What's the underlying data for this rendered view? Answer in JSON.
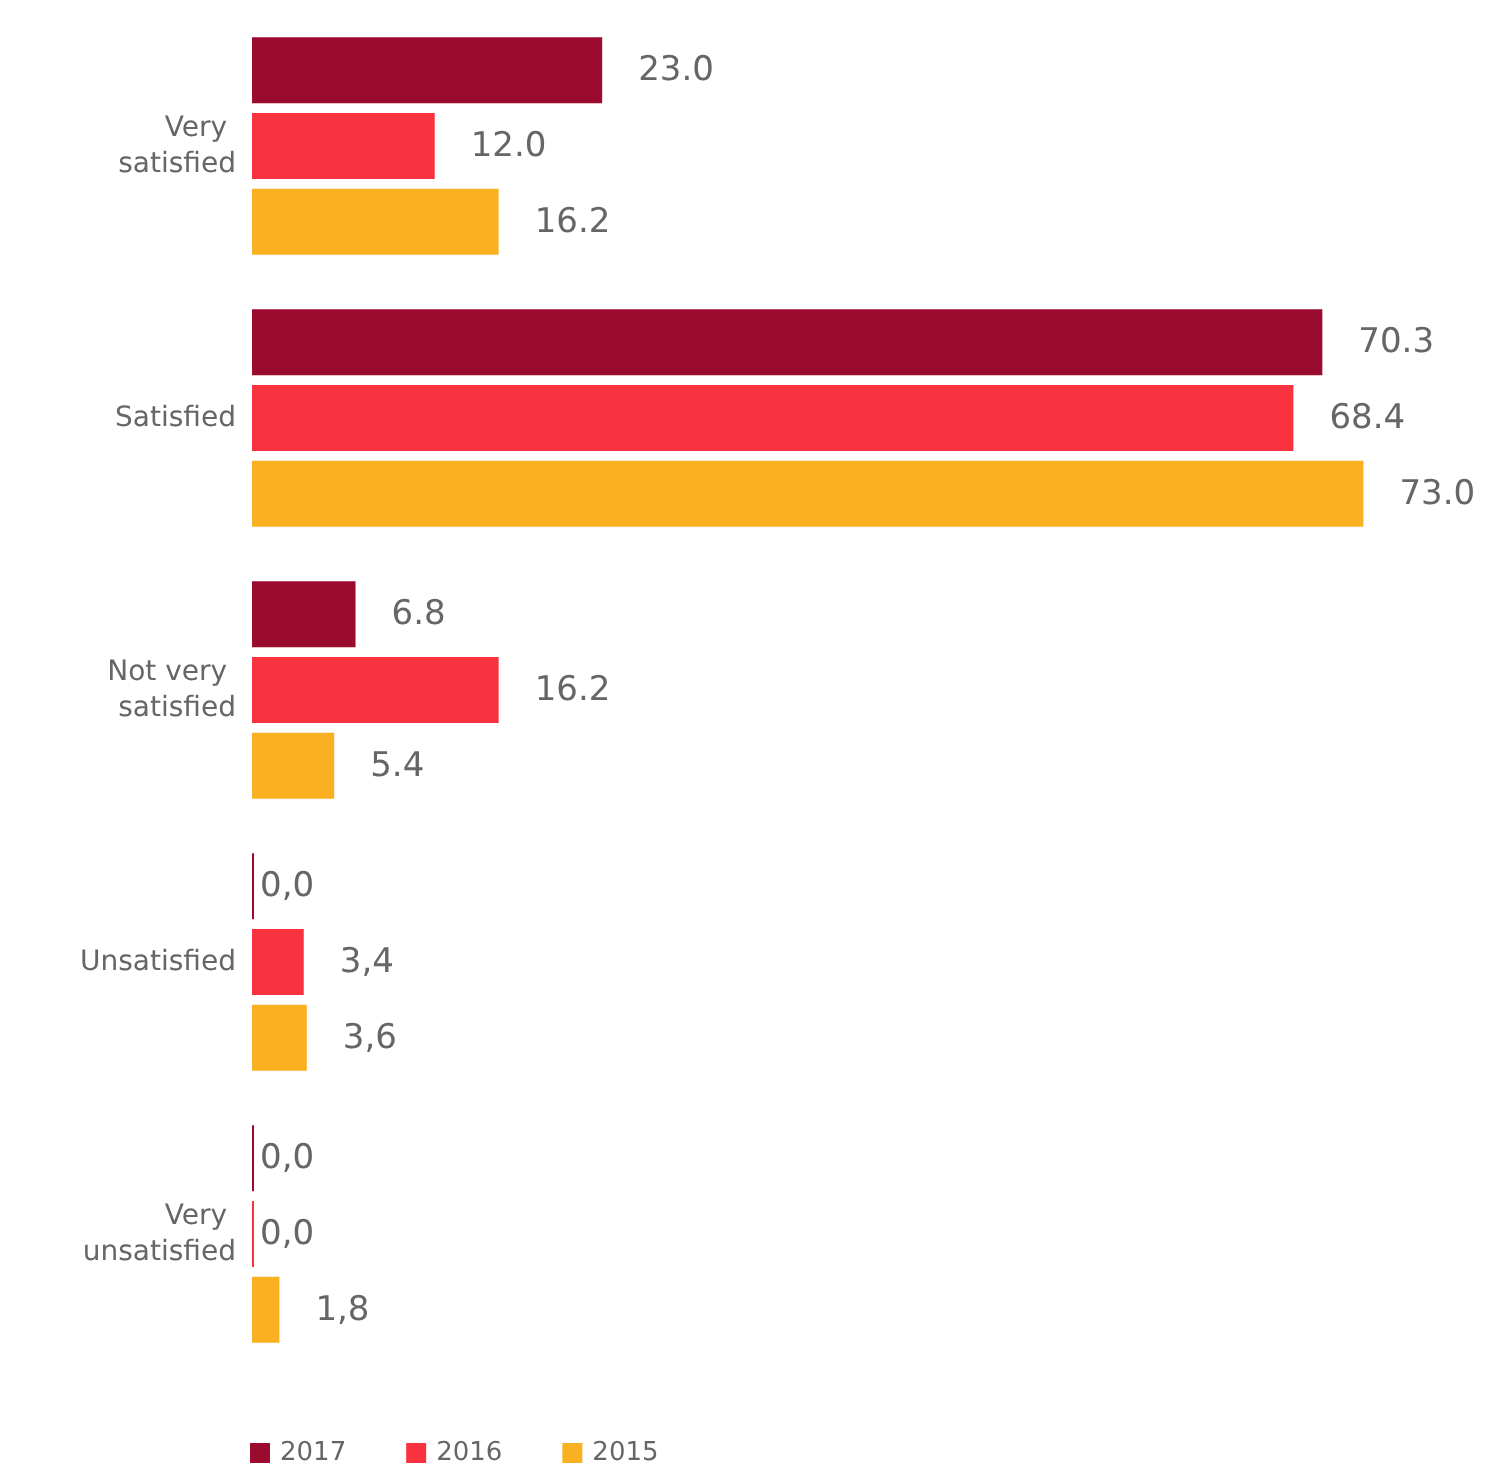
{
  "chart_data": {
    "type": "bar",
    "orientation": "horizontal",
    "categories": [
      "Very satisfied",
      "Satisfied",
      "Not very satisfied",
      "Unsatisfied",
      "Very unsatisfied"
    ],
    "series": [
      {
        "name": "2017",
        "color": "#9b0b2e",
        "values": [
          23.0,
          70.3,
          6.8,
          0.0,
          0.0
        ],
        "value_labels": [
          "23.0",
          "70.3",
          "6.8",
          "0,0",
          "0,0"
        ]
      },
      {
        "name": "2016",
        "color": "#f9323f",
        "values": [
          12.0,
          68.4,
          16.2,
          3.4,
          0.0
        ],
        "value_labels": [
          "12.0",
          "68.4",
          "16.2",
          "3,4",
          "0,0"
        ]
      },
      {
        "name": "2015",
        "color": "#f9b122",
        "values": [
          16.2,
          73.0,
          5.4,
          3.6,
          1.8
        ],
        "value_labels": [
          "16.2",
          "73.0",
          "5.4",
          "3,6",
          "1,8"
        ]
      }
    ],
    "legend": "bottom left",
    "grid": false
  }
}
